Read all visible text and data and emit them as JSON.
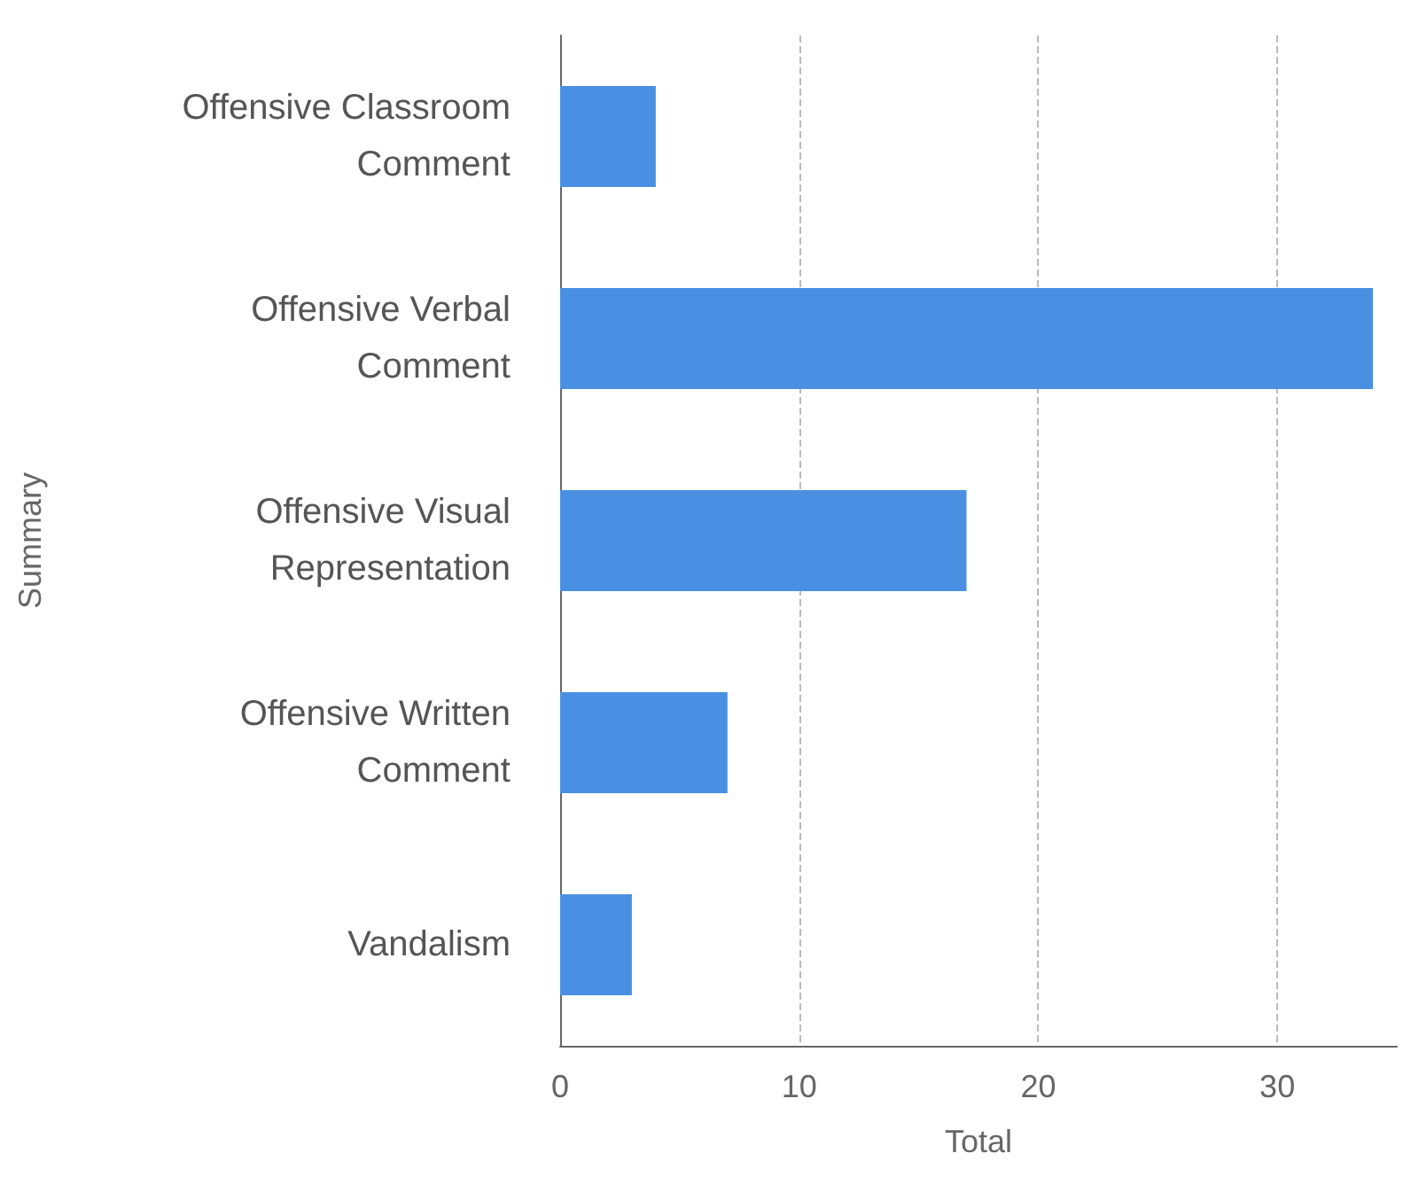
{
  "chart_data": {
    "type": "bar",
    "orientation": "horizontal",
    "xlabel": "Total",
    "ylabel": "Summary",
    "categories": [
      "Offensive Classroom\nComment",
      "Offensive Verbal\nComment",
      "Offensive Visual\nRepresentation",
      "Offensive Written\nComment",
      "Vandalism"
    ],
    "values": [
      4,
      34,
      17,
      7,
      3
    ],
    "color": "#4a90e2",
    "xlim": [
      0,
      35
    ],
    "xticks": [
      0,
      10,
      20,
      30
    ],
    "grid": "x"
  }
}
